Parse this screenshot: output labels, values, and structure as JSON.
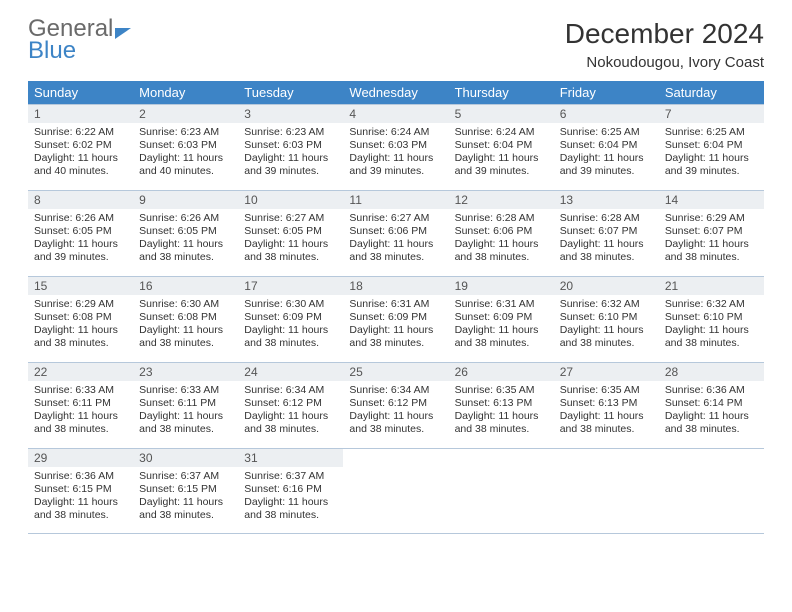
{
  "logo": {
    "line1": "General",
    "line2": "Blue"
  },
  "title": "December 2024",
  "location": "Nokoudougou, Ivory Coast",
  "colors": {
    "header_bg": "#3d84c6",
    "header_text": "#ffffff",
    "daynum_bg": "#eceff2",
    "border": "#b6c8db",
    "logo_gray": "#6a6a6a",
    "logo_blue": "#3d84c6"
  },
  "day_headers": [
    "Sunday",
    "Monday",
    "Tuesday",
    "Wednesday",
    "Thursday",
    "Friday",
    "Saturday"
  ],
  "weeks": [
    [
      {
        "n": "1",
        "sr": "Sunrise: 6:22 AM",
        "ss": "Sunset: 6:02 PM",
        "dl": "Daylight: 11 hours and 40 minutes."
      },
      {
        "n": "2",
        "sr": "Sunrise: 6:23 AM",
        "ss": "Sunset: 6:03 PM",
        "dl": "Daylight: 11 hours and 40 minutes."
      },
      {
        "n": "3",
        "sr": "Sunrise: 6:23 AM",
        "ss": "Sunset: 6:03 PM",
        "dl": "Daylight: 11 hours and 39 minutes."
      },
      {
        "n": "4",
        "sr": "Sunrise: 6:24 AM",
        "ss": "Sunset: 6:03 PM",
        "dl": "Daylight: 11 hours and 39 minutes."
      },
      {
        "n": "5",
        "sr": "Sunrise: 6:24 AM",
        "ss": "Sunset: 6:04 PM",
        "dl": "Daylight: 11 hours and 39 minutes."
      },
      {
        "n": "6",
        "sr": "Sunrise: 6:25 AM",
        "ss": "Sunset: 6:04 PM",
        "dl": "Daylight: 11 hours and 39 minutes."
      },
      {
        "n": "7",
        "sr": "Sunrise: 6:25 AM",
        "ss": "Sunset: 6:04 PM",
        "dl": "Daylight: 11 hours and 39 minutes."
      }
    ],
    [
      {
        "n": "8",
        "sr": "Sunrise: 6:26 AM",
        "ss": "Sunset: 6:05 PM",
        "dl": "Daylight: 11 hours and 39 minutes."
      },
      {
        "n": "9",
        "sr": "Sunrise: 6:26 AM",
        "ss": "Sunset: 6:05 PM",
        "dl": "Daylight: 11 hours and 38 minutes."
      },
      {
        "n": "10",
        "sr": "Sunrise: 6:27 AM",
        "ss": "Sunset: 6:05 PM",
        "dl": "Daylight: 11 hours and 38 minutes."
      },
      {
        "n": "11",
        "sr": "Sunrise: 6:27 AM",
        "ss": "Sunset: 6:06 PM",
        "dl": "Daylight: 11 hours and 38 minutes."
      },
      {
        "n": "12",
        "sr": "Sunrise: 6:28 AM",
        "ss": "Sunset: 6:06 PM",
        "dl": "Daylight: 11 hours and 38 minutes."
      },
      {
        "n": "13",
        "sr": "Sunrise: 6:28 AM",
        "ss": "Sunset: 6:07 PM",
        "dl": "Daylight: 11 hours and 38 minutes."
      },
      {
        "n": "14",
        "sr": "Sunrise: 6:29 AM",
        "ss": "Sunset: 6:07 PM",
        "dl": "Daylight: 11 hours and 38 minutes."
      }
    ],
    [
      {
        "n": "15",
        "sr": "Sunrise: 6:29 AM",
        "ss": "Sunset: 6:08 PM",
        "dl": "Daylight: 11 hours and 38 minutes."
      },
      {
        "n": "16",
        "sr": "Sunrise: 6:30 AM",
        "ss": "Sunset: 6:08 PM",
        "dl": "Daylight: 11 hours and 38 minutes."
      },
      {
        "n": "17",
        "sr": "Sunrise: 6:30 AM",
        "ss": "Sunset: 6:09 PM",
        "dl": "Daylight: 11 hours and 38 minutes."
      },
      {
        "n": "18",
        "sr": "Sunrise: 6:31 AM",
        "ss": "Sunset: 6:09 PM",
        "dl": "Daylight: 11 hours and 38 minutes."
      },
      {
        "n": "19",
        "sr": "Sunrise: 6:31 AM",
        "ss": "Sunset: 6:09 PM",
        "dl": "Daylight: 11 hours and 38 minutes."
      },
      {
        "n": "20",
        "sr": "Sunrise: 6:32 AM",
        "ss": "Sunset: 6:10 PM",
        "dl": "Daylight: 11 hours and 38 minutes."
      },
      {
        "n": "21",
        "sr": "Sunrise: 6:32 AM",
        "ss": "Sunset: 6:10 PM",
        "dl": "Daylight: 11 hours and 38 minutes."
      }
    ],
    [
      {
        "n": "22",
        "sr": "Sunrise: 6:33 AM",
        "ss": "Sunset: 6:11 PM",
        "dl": "Daylight: 11 hours and 38 minutes."
      },
      {
        "n": "23",
        "sr": "Sunrise: 6:33 AM",
        "ss": "Sunset: 6:11 PM",
        "dl": "Daylight: 11 hours and 38 minutes."
      },
      {
        "n": "24",
        "sr": "Sunrise: 6:34 AM",
        "ss": "Sunset: 6:12 PM",
        "dl": "Daylight: 11 hours and 38 minutes."
      },
      {
        "n": "25",
        "sr": "Sunrise: 6:34 AM",
        "ss": "Sunset: 6:12 PM",
        "dl": "Daylight: 11 hours and 38 minutes."
      },
      {
        "n": "26",
        "sr": "Sunrise: 6:35 AM",
        "ss": "Sunset: 6:13 PM",
        "dl": "Daylight: 11 hours and 38 minutes."
      },
      {
        "n": "27",
        "sr": "Sunrise: 6:35 AM",
        "ss": "Sunset: 6:13 PM",
        "dl": "Daylight: 11 hours and 38 minutes."
      },
      {
        "n": "28",
        "sr": "Sunrise: 6:36 AM",
        "ss": "Sunset: 6:14 PM",
        "dl": "Daylight: 11 hours and 38 minutes."
      }
    ],
    [
      {
        "n": "29",
        "sr": "Sunrise: 6:36 AM",
        "ss": "Sunset: 6:15 PM",
        "dl": "Daylight: 11 hours and 38 minutes."
      },
      {
        "n": "30",
        "sr": "Sunrise: 6:37 AM",
        "ss": "Sunset: 6:15 PM",
        "dl": "Daylight: 11 hours and 38 minutes."
      },
      {
        "n": "31",
        "sr": "Sunrise: 6:37 AM",
        "ss": "Sunset: 6:16 PM",
        "dl": "Daylight: 11 hours and 38 minutes."
      },
      {
        "empty": true
      },
      {
        "empty": true
      },
      {
        "empty": true
      },
      {
        "empty": true
      }
    ]
  ]
}
